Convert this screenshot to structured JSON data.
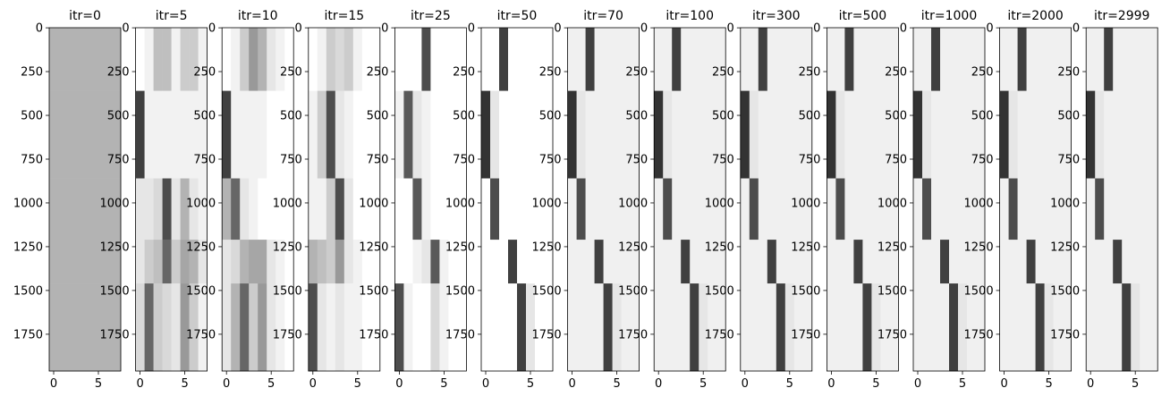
{
  "chart_data": [
    {
      "type": "heatmap",
      "title": "itr=0",
      "xlim": [
        -0.5,
        7.5
      ],
      "xticks": [
        0,
        5
      ],
      "ylim": [
        1960,
        -0.5
      ],
      "yticks": [
        0,
        250,
        500,
        750,
        1000,
        1250,
        1500,
        1750
      ],
      "y_edges": [
        0,
        360,
        860,
        1210,
        1460,
        1960
      ],
      "values": [
        [
          0.3,
          0.3,
          0.3,
          0.3,
          0.3,
          0.3,
          0.3,
          0.3
        ],
        [
          0.3,
          0.3,
          0.3,
          0.3,
          0.3,
          0.3,
          0.3,
          0.3
        ],
        [
          0.3,
          0.3,
          0.3,
          0.3,
          0.3,
          0.3,
          0.3,
          0.3
        ],
        [
          0.3,
          0.3,
          0.3,
          0.3,
          0.3,
          0.3,
          0.3,
          0.3
        ],
        [
          0.3,
          0.3,
          0.3,
          0.3,
          0.3,
          0.3,
          0.3,
          0.3
        ]
      ]
    },
    {
      "type": "heatmap",
      "title": "itr=5",
      "xlim": [
        -0.5,
        7.5
      ],
      "xticks": [
        0,
        5
      ],
      "ylim": [
        1960,
        -0.5
      ],
      "yticks": [
        0,
        250,
        500,
        750,
        1000,
        1250,
        1500,
        1750
      ],
      "y_edges": [
        0,
        360,
        860,
        1210,
        1460,
        1960
      ],
      "values": [
        [
          0,
          0.05,
          0.25,
          0.25,
          0.05,
          0.2,
          0.2,
          0.05
        ],
        [
          0.75,
          0.05,
          0.05,
          0.05,
          0.05,
          0.05,
          0.05,
          0.05
        ],
        [
          0.1,
          0.1,
          0.15,
          0.7,
          0.1,
          0.3,
          0.1,
          0.05
        ],
        [
          0.1,
          0.2,
          0.25,
          0.6,
          0.2,
          0.35,
          0.3,
          0.1
        ],
        [
          0.15,
          0.6,
          0.2,
          0.15,
          0.1,
          0.4,
          0.2,
          0.05
        ]
      ]
    },
    {
      "type": "heatmap",
      "title": "itr=10",
      "xlim": [
        -0.5,
        7.5
      ],
      "xticks": [
        0,
        5
      ],
      "ylim": [
        1960,
        -0.5
      ],
      "yticks": [
        0,
        250,
        500,
        750,
        1000,
        1250,
        1500,
        1750
      ],
      "y_edges": [
        0,
        360,
        860,
        1210,
        1460,
        1960
      ],
      "values": [
        [
          0,
          0.05,
          0.2,
          0.4,
          0.3,
          0.1,
          0.05,
          0
        ],
        [
          0.75,
          0.05,
          0.05,
          0.05,
          0.05,
          0,
          0,
          0
        ],
        [
          0.3,
          0.6,
          0.1,
          0.05,
          0,
          0,
          0,
          0
        ],
        [
          0.1,
          0.15,
          0.3,
          0.35,
          0.35,
          0.1,
          0.05,
          0
        ],
        [
          0.1,
          0.3,
          0.6,
          0.2,
          0.4,
          0.1,
          0.05,
          0
        ]
      ]
    },
    {
      "type": "heatmap",
      "title": "itr=15",
      "xlim": [
        -0.5,
        7.5
      ],
      "xticks": [
        0,
        5
      ],
      "ylim": [
        1960,
        -0.5
      ],
      "yticks": [
        0,
        250,
        500,
        750,
        1000,
        1250,
        1500,
        1750
      ],
      "y_edges": [
        0,
        360,
        860,
        1210,
        1460,
        1960
      ],
      "values": [
        [
          0,
          0.05,
          0.2,
          0.15,
          0.2,
          0.05,
          0,
          0
        ],
        [
          0.05,
          0.2,
          0.7,
          0.1,
          0.05,
          0,
          0,
          0
        ],
        [
          0.05,
          0.05,
          0.2,
          0.7,
          0.1,
          0,
          0,
          0
        ],
        [
          0.3,
          0.25,
          0.2,
          0.4,
          0.1,
          0.05,
          0,
          0
        ],
        [
          0.7,
          0.1,
          0.05,
          0.1,
          0.05,
          0.05,
          0,
          0
        ]
      ]
    },
    {
      "type": "heatmap",
      "title": "itr=25",
      "xlim": [
        -0.5,
        7.5
      ],
      "xticks": [
        0,
        5
      ],
      "ylim": [
        1960,
        -0.5
      ],
      "yticks": [
        0,
        250,
        500,
        750,
        1000,
        1250,
        1500,
        1750
      ],
      "y_edges": [
        0,
        360,
        860,
        1210,
        1460,
        1960
      ],
      "values": [
        [
          0,
          0,
          0,
          0.7,
          0,
          0,
          0,
          0
        ],
        [
          0.05,
          0.65,
          0.1,
          0.05,
          0,
          0,
          0,
          0
        ],
        [
          0,
          0,
          0.65,
          0.05,
          0,
          0,
          0,
          0
        ],
        [
          0,
          0,
          0.05,
          0.1,
          0.65,
          0.05,
          0,
          0
        ],
        [
          0.7,
          0.05,
          0,
          0,
          0.15,
          0.05,
          0,
          0
        ]
      ]
    },
    {
      "type": "heatmap",
      "title": "itr=50",
      "xlim": [
        -0.5,
        7.5
      ],
      "xticks": [
        0,
        5
      ],
      "ylim": [
        1960,
        -0.5
      ],
      "yticks": [
        0,
        250,
        500,
        750,
        1000,
        1250,
        1500,
        1750
      ],
      "y_edges": [
        0,
        360,
        860,
        1210,
        1460,
        1960
      ],
      "values": [
        [
          0,
          0,
          0.75,
          0,
          0,
          0,
          0,
          0
        ],
        [
          0.8,
          0.1,
          0,
          0,
          0,
          0,
          0,
          0
        ],
        [
          0,
          0.7,
          0,
          0,
          0,
          0,
          0,
          0
        ],
        [
          0,
          0,
          0,
          0.75,
          0,
          0,
          0,
          0
        ],
        [
          0,
          0,
          0,
          0,
          0.75,
          0.1,
          0,
          0
        ]
      ]
    },
    {
      "type": "heatmap",
      "title": "itr=70",
      "xlim": [
        -0.5,
        7.5
      ],
      "xticks": [
        0,
        5
      ],
      "ylim": [
        1960,
        -0.5
      ],
      "yticks": [
        0,
        250,
        500,
        750,
        1000,
        1250,
        1500,
        1750
      ],
      "y_edges": [
        0,
        360,
        860,
        1210,
        1460,
        1960
      ],
      "values": [
        [
          0.06,
          0.06,
          0.75,
          0.06,
          0.06,
          0.06,
          0.06,
          0.06
        ],
        [
          0.8,
          0.1,
          0.06,
          0.06,
          0.06,
          0.06,
          0.06,
          0.06
        ],
        [
          0.06,
          0.7,
          0.06,
          0.06,
          0.06,
          0.06,
          0.06,
          0.06
        ],
        [
          0.06,
          0.06,
          0.06,
          0.75,
          0.06,
          0.06,
          0.06,
          0.06
        ],
        [
          0.06,
          0.06,
          0.06,
          0.06,
          0.75,
          0.1,
          0.06,
          0.06
        ]
      ]
    },
    {
      "type": "heatmap",
      "title": "itr=100",
      "xlim": [
        -0.5,
        7.5
      ],
      "xticks": [
        0,
        5
      ],
      "ylim": [
        1960,
        -0.5
      ],
      "yticks": [
        0,
        250,
        500,
        750,
        1000,
        1250,
        1500,
        1750
      ],
      "y_edges": [
        0,
        360,
        860,
        1210,
        1460,
        1960
      ],
      "values": [
        [
          0.06,
          0.06,
          0.75,
          0.06,
          0.06,
          0.06,
          0.06,
          0.06
        ],
        [
          0.8,
          0.1,
          0.06,
          0.06,
          0.06,
          0.06,
          0.06,
          0.06
        ],
        [
          0.06,
          0.7,
          0.06,
          0.06,
          0.06,
          0.06,
          0.06,
          0.06
        ],
        [
          0.06,
          0.06,
          0.06,
          0.75,
          0.06,
          0.06,
          0.06,
          0.06
        ],
        [
          0.06,
          0.06,
          0.06,
          0.06,
          0.75,
          0.1,
          0.06,
          0.06
        ]
      ]
    },
    {
      "type": "heatmap",
      "title": "itr=300",
      "xlim": [
        -0.5,
        7.5
      ],
      "xticks": [
        0,
        5
      ],
      "ylim": [
        1960,
        -0.5
      ],
      "yticks": [
        0,
        250,
        500,
        750,
        1000,
        1250,
        1500,
        1750
      ],
      "y_edges": [
        0,
        360,
        860,
        1210,
        1460,
        1960
      ],
      "values": [
        [
          0.06,
          0.06,
          0.75,
          0.06,
          0.06,
          0.06,
          0.06,
          0.06
        ],
        [
          0.8,
          0.1,
          0.06,
          0.06,
          0.06,
          0.06,
          0.06,
          0.06
        ],
        [
          0.06,
          0.7,
          0.06,
          0.06,
          0.06,
          0.06,
          0.06,
          0.06
        ],
        [
          0.06,
          0.06,
          0.06,
          0.75,
          0.06,
          0.06,
          0.06,
          0.06
        ],
        [
          0.06,
          0.06,
          0.06,
          0.06,
          0.75,
          0.1,
          0.06,
          0.06
        ]
      ]
    },
    {
      "type": "heatmap",
      "title": "itr=500",
      "xlim": [
        -0.5,
        7.5
      ],
      "xticks": [
        0,
        5
      ],
      "ylim": [
        1960,
        -0.5
      ],
      "yticks": [
        0,
        250,
        500,
        750,
        1000,
        1250,
        1500,
        1750
      ],
      "y_edges": [
        0,
        360,
        860,
        1210,
        1460,
        1960
      ],
      "values": [
        [
          0.06,
          0.06,
          0.75,
          0.06,
          0.06,
          0.06,
          0.06,
          0.06
        ],
        [
          0.8,
          0.1,
          0.06,
          0.06,
          0.06,
          0.06,
          0.06,
          0.06
        ],
        [
          0.06,
          0.7,
          0.06,
          0.06,
          0.06,
          0.06,
          0.06,
          0.06
        ],
        [
          0.06,
          0.06,
          0.06,
          0.75,
          0.06,
          0.06,
          0.06,
          0.06
        ],
        [
          0.06,
          0.06,
          0.06,
          0.06,
          0.75,
          0.1,
          0.06,
          0.06
        ]
      ]
    },
    {
      "type": "heatmap",
      "title": "itr=1000",
      "xlim": [
        -0.5,
        7.5
      ],
      "xticks": [
        0,
        5
      ],
      "ylim": [
        1960,
        -0.5
      ],
      "yticks": [
        0,
        250,
        500,
        750,
        1000,
        1250,
        1500,
        1750
      ],
      "y_edges": [
        0,
        360,
        860,
        1210,
        1460,
        1960
      ],
      "values": [
        [
          0.06,
          0.06,
          0.75,
          0.06,
          0.06,
          0.06,
          0.06,
          0.06
        ],
        [
          0.8,
          0.1,
          0.06,
          0.06,
          0.06,
          0.06,
          0.06,
          0.06
        ],
        [
          0.06,
          0.7,
          0.06,
          0.06,
          0.06,
          0.06,
          0.06,
          0.06
        ],
        [
          0.06,
          0.06,
          0.06,
          0.75,
          0.06,
          0.06,
          0.06,
          0.06
        ],
        [
          0.06,
          0.06,
          0.06,
          0.06,
          0.75,
          0.1,
          0.06,
          0.06
        ]
      ]
    },
    {
      "type": "heatmap",
      "title": "itr=2000",
      "xlim": [
        -0.5,
        7.5
      ],
      "xticks": [
        0,
        5
      ],
      "ylim": [
        1960,
        -0.5
      ],
      "yticks": [
        0,
        250,
        500,
        750,
        1000,
        1250,
        1500,
        1750
      ],
      "y_edges": [
        0,
        360,
        860,
        1210,
        1460,
        1960
      ],
      "values": [
        [
          0.06,
          0.06,
          0.75,
          0.06,
          0.06,
          0.06,
          0.06,
          0.06
        ],
        [
          0.8,
          0.1,
          0.06,
          0.06,
          0.06,
          0.06,
          0.06,
          0.06
        ],
        [
          0.06,
          0.7,
          0.06,
          0.06,
          0.06,
          0.06,
          0.06,
          0.06
        ],
        [
          0.06,
          0.06,
          0.06,
          0.75,
          0.06,
          0.06,
          0.06,
          0.06
        ],
        [
          0.06,
          0.06,
          0.06,
          0.06,
          0.75,
          0.1,
          0.06,
          0.06
        ]
      ]
    },
    {
      "type": "heatmap",
      "title": "itr=2999",
      "xlim": [
        -0.5,
        7.5
      ],
      "xticks": [
        0,
        5
      ],
      "ylim": [
        1960,
        -0.5
      ],
      "yticks": [
        0,
        250,
        500,
        750,
        1000,
        1250,
        1500,
        1750
      ],
      "y_edges": [
        0,
        360,
        860,
        1210,
        1460,
        1960
      ],
      "values": [
        [
          0.06,
          0.06,
          0.75,
          0.06,
          0.06,
          0.06,
          0.06,
          0.06
        ],
        [
          0.8,
          0.1,
          0.06,
          0.06,
          0.06,
          0.06,
          0.06,
          0.06
        ],
        [
          0.06,
          0.7,
          0.06,
          0.06,
          0.06,
          0.06,
          0.06,
          0.06
        ],
        [
          0.06,
          0.06,
          0.06,
          0.75,
          0.06,
          0.06,
          0.06,
          0.06
        ],
        [
          0.06,
          0.06,
          0.06,
          0.06,
          0.75,
          0.1,
          0.06,
          0.06
        ]
      ]
    }
  ]
}
